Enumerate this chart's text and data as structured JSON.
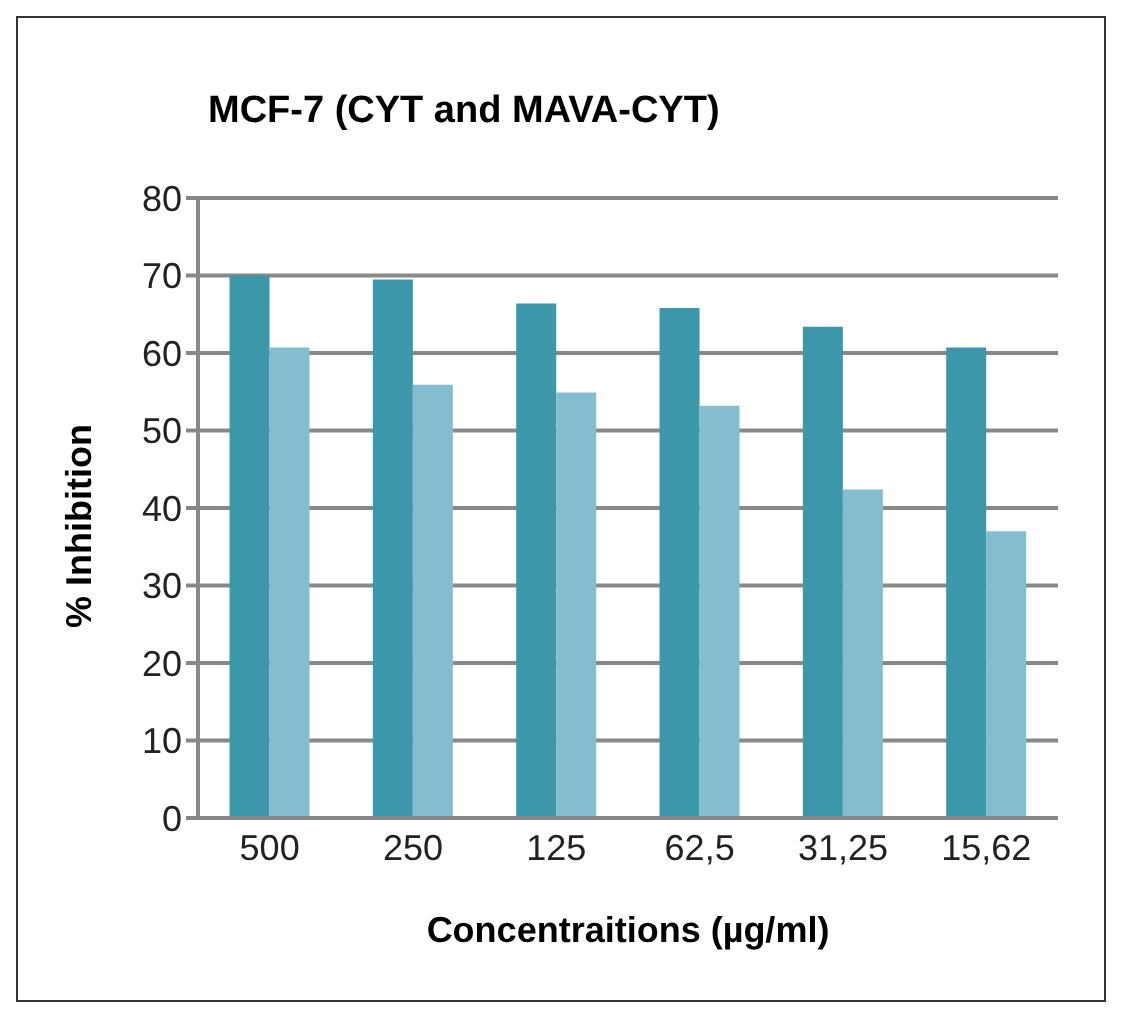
{
  "chart_data": {
    "type": "bar",
    "title": "MCF-7 (CYT and MAVA-CYT)",
    "xlabel": "Concentraitions (µg/ml)",
    "ylabel": "% Inhibition",
    "categories": [
      "500",
      "250",
      "125",
      "62,5",
      "31,25",
      "15,62"
    ],
    "series": [
      {
        "color": "#3c97ab",
        "values": [
          70.0,
          69.5,
          66.4,
          65.8,
          63.4,
          60.7
        ]
      },
      {
        "color": "#84bdd0",
        "values": [
          60.7,
          55.9,
          54.9,
          53.2,
          42.4,
          37.0
        ]
      }
    ],
    "ylim": [
      0,
      80
    ],
    "yticks": [
      0,
      10,
      20,
      30,
      40,
      50,
      60,
      70,
      80
    ],
    "grid": "y",
    "legend": false
  }
}
